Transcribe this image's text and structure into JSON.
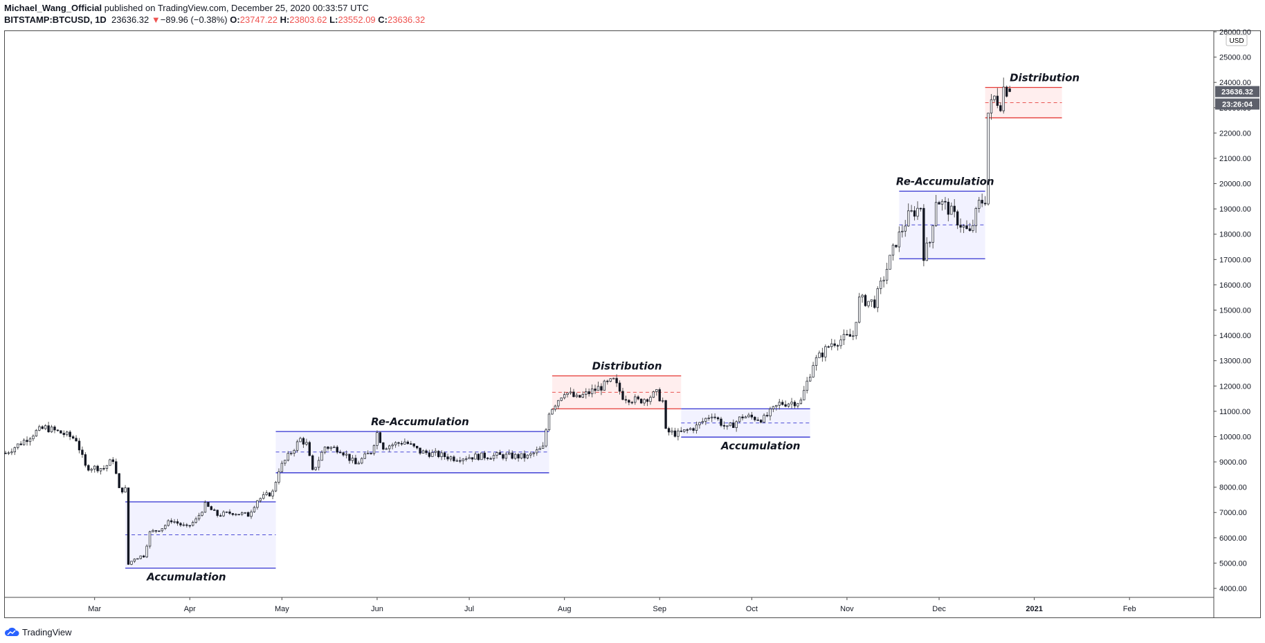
{
  "header": {
    "author": "Michael_Wang_Official",
    "published": "published on TradingView.com, December 25, 2020 00:33:57 UTC",
    "symbol": "BITSTAMP:BTCUSD, 1D",
    "last": "23636.32",
    "change_arrow": "▼",
    "change": "−89.96 (−0.38%)",
    "open_label": "O:",
    "open": "23747.22",
    "high_label": "H:",
    "high": "23803.62",
    "low_label": "L:",
    "low": "23552.09",
    "close_label": "C:",
    "close": "23636.32"
  },
  "footer": {
    "brand": "TradingView",
    "logo_icon": "tradingview-cloud-icon"
  },
  "colors": {
    "up": "#ffffff",
    "down": "#131722",
    "wick": "#555555",
    "accum_line": "#2f2fd0",
    "accum_fill": "#f2f2ff",
    "dist_line": "#e53935",
    "dist_fill": "#ffeeee",
    "price_tag": "#5d606b",
    "axis_text": "#131722"
  },
  "chart_data": {
    "type": "candlestick",
    "title": "",
    "currency": "USD",
    "ylim": [
      3700,
      26000
    ],
    "x_range": [
      "2020-02-01",
      "2021-02-28"
    ],
    "y_ticks": [
      "4000.00",
      "5000.00",
      "6000.00",
      "7000.00",
      "8000.00",
      "9000.00",
      "10000.00",
      "11000.00",
      "12000.00",
      "13000.00",
      "14000.00",
      "15000.00",
      "16000.00",
      "17000.00",
      "18000.00",
      "19000.00",
      "20000.00",
      "21000.00",
      "22000.00",
      "23000.00",
      "24000.00",
      "25000.00",
      "26000.00"
    ],
    "x_ticks": [
      {
        "date": "2020-03-01",
        "label": "Mar"
      },
      {
        "date": "2020-04-01",
        "label": "Apr"
      },
      {
        "date": "2020-05-01",
        "label": "May"
      },
      {
        "date": "2020-06-01",
        "label": "Jun"
      },
      {
        "date": "2020-07-01",
        "label": "Jul"
      },
      {
        "date": "2020-08-01",
        "label": "Aug"
      },
      {
        "date": "2020-09-01",
        "label": "Sep"
      },
      {
        "date": "2020-10-01",
        "label": "Oct"
      },
      {
        "date": "2020-11-01",
        "label": "Nov"
      },
      {
        "date": "2020-12-01",
        "label": "Dec"
      },
      {
        "date": "2021-01-01",
        "label": "2021"
      },
      {
        "date": "2021-02-01",
        "label": "Feb"
      }
    ],
    "price_tags": {
      "price": "23636.32",
      "countdown": "23:26:04",
      "price_value": 23636.32
    },
    "path": [
      [
        "2020-02-01",
        9350
      ],
      [
        "2020-02-06",
        9750
      ],
      [
        "2020-02-11",
        10200
      ],
      [
        "2020-02-14",
        10350
      ],
      [
        "2020-02-19",
        10150
      ],
      [
        "2020-02-24",
        9900
      ],
      [
        "2020-02-27",
        8800
      ],
      [
        "2020-03-04",
        8750
      ],
      [
        "2020-03-07",
        9100
      ],
      [
        "2020-03-09",
        7900
      ],
      [
        "2020-03-11",
        7900
      ],
      [
        "2020-03-12",
        4950
      ],
      [
        "2020-03-14",
        5200
      ],
      [
        "2020-03-17",
        5300
      ],
      [
        "2020-03-19",
        6200
      ],
      [
        "2020-03-23",
        6400
      ],
      [
        "2020-03-26",
        6700
      ],
      [
        "2020-03-31",
        6400
      ],
      [
        "2020-04-03",
        6700
      ],
      [
        "2020-04-06",
        7300
      ],
      [
        "2020-04-10",
        6900
      ],
      [
        "2020-04-15",
        7000
      ],
      [
        "2020-04-20",
        6900
      ],
      [
        "2020-04-23",
        7500
      ],
      [
        "2020-04-28",
        7800
      ],
      [
        "2020-04-30",
        8700
      ],
      [
        "2020-05-07",
        9900
      ],
      [
        "2020-05-09",
        9700
      ],
      [
        "2020-05-11",
        8600
      ],
      [
        "2020-05-15",
        9600
      ],
      [
        "2020-05-20",
        9500
      ],
      [
        "2020-05-25",
        8900
      ],
      [
        "2020-05-30",
        9400
      ],
      [
        "2020-06-01",
        10150
      ],
      [
        "2020-06-03",
        9600
      ],
      [
        "2020-06-10",
        9800
      ],
      [
        "2020-06-15",
        9400
      ],
      [
        "2020-06-20",
        9300
      ],
      [
        "2020-06-26",
        9150
      ],
      [
        "2020-07-01",
        9200
      ],
      [
        "2020-07-10",
        9250
      ],
      [
        "2020-07-20",
        9200
      ],
      [
        "2020-07-25",
        9550
      ],
      [
        "2020-07-27",
        11000
      ],
      [
        "2020-08-01",
        11800
      ],
      [
        "2020-08-05",
        11500
      ],
      [
        "2020-08-10",
        11800
      ],
      [
        "2020-08-17",
        12200
      ],
      [
        "2020-08-20",
        11600
      ],
      [
        "2020-08-25",
        11400
      ],
      [
        "2020-08-31",
        11700
      ],
      [
        "2020-09-02",
        11400
      ],
      [
        "2020-09-03",
        10200
      ],
      [
        "2020-09-07",
        10100
      ],
      [
        "2020-09-13",
        10400
      ],
      [
        "2020-09-18",
        10900
      ],
      [
        "2020-09-23",
        10300
      ],
      [
        "2020-09-28",
        10800
      ],
      [
        "2020-10-05",
        10700
      ],
      [
        "2020-10-10",
        11300
      ],
      [
        "2020-10-17",
        11400
      ],
      [
        "2020-10-21",
        12900
      ],
      [
        "2020-10-27",
        13700
      ],
      [
        "2020-11-03",
        14000
      ],
      [
        "2020-11-05",
        15400
      ],
      [
        "2020-11-10",
        15300
      ],
      [
        "2020-11-13",
        16300
      ],
      [
        "2020-11-17",
        17700
      ],
      [
        "2020-11-21",
        18700
      ],
      [
        "2020-11-25",
        19100
      ],
      [
        "2020-11-26",
        17200
      ],
      [
        "2020-11-28",
        17700
      ],
      [
        "2020-11-30",
        19400
      ],
      [
        "2020-12-04",
        19000
      ],
      [
        "2020-12-08",
        18400
      ],
      [
        "2020-12-11",
        18000
      ],
      [
        "2020-12-14",
        19200
      ],
      [
        "2020-12-16",
        19400
      ],
      [
        "2020-12-17",
        22800
      ],
      [
        "2020-12-19",
        23400
      ],
      [
        "2020-12-21",
        23200
      ],
      [
        "2020-12-22",
        23800
      ],
      [
        "2020-12-24",
        23636
      ]
    ],
    "zones": [
      {
        "label": "Accumulation",
        "kind": "accumulation",
        "x0": "2020-03-11",
        "x1": "2020-04-29",
        "top": 7420,
        "bottom": 4800,
        "mid": 6120,
        "label_pos": "below",
        "label_date": "2020-03-18"
      },
      {
        "label": "Re-Accumulation",
        "kind": "accumulation",
        "x0": "2020-04-29",
        "x1": "2020-07-27",
        "top": 10200,
        "bottom": 8570,
        "mid": 9390,
        "label_pos": "above",
        "label_date": "2020-05-30"
      },
      {
        "label": "Distribution",
        "kind": "distribution",
        "x0": "2020-07-28",
        "x1": "2020-09-08",
        "top": 12400,
        "bottom": 11100,
        "mid": 11750,
        "label_pos": "above",
        "label_date": "2020-08-10"
      },
      {
        "label": "Accumulation",
        "kind": "accumulation",
        "x0": "2020-09-08",
        "x1": "2020-10-20",
        "top": 11100,
        "bottom": 9980,
        "mid": 10540,
        "label_pos": "below",
        "label_date": "2020-09-21"
      },
      {
        "label": "Re-Accumulation",
        "kind": "accumulation",
        "x0": "2020-11-18",
        "x1": "2020-12-16",
        "top": 19700,
        "bottom": 17030,
        "mid": 18370,
        "label_pos": "above",
        "label_date": "2020-11-17"
      },
      {
        "label": "Distribution",
        "kind": "distribution",
        "x0": "2020-12-16",
        "x1": "2021-01-10",
        "top": 23800,
        "bottom": 22600,
        "mid": 23200,
        "label_pos": "above",
        "label_date": "2020-12-24"
      }
    ]
  }
}
